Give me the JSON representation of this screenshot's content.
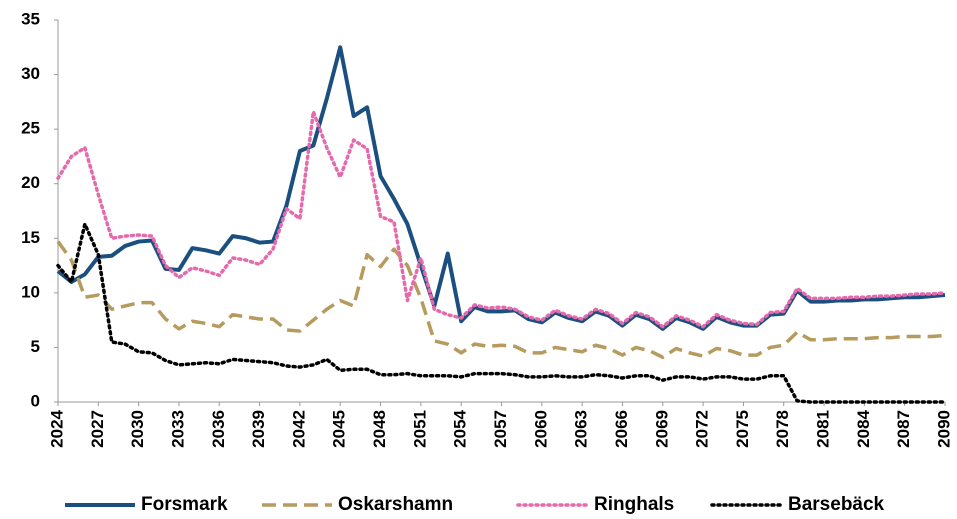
{
  "chart_data": {
    "type": "line",
    "x": [
      2024,
      2025,
      2026,
      2027,
      2028,
      2029,
      2030,
      2031,
      2032,
      2033,
      2034,
      2035,
      2036,
      2037,
      2038,
      2039,
      2040,
      2041,
      2042,
      2043,
      2044,
      2045,
      2046,
      2047,
      2048,
      2049,
      2050,
      2051,
      2052,
      2053,
      2054,
      2055,
      2056,
      2057,
      2058,
      2059,
      2060,
      2061,
      2062,
      2063,
      2064,
      2065,
      2066,
      2067,
      2068,
      2069,
      2070,
      2071,
      2072,
      2073,
      2074,
      2075,
      2076,
      2077,
      2078,
      2079,
      2080,
      2081,
      2082,
      2083,
      2084,
      2085,
      2086,
      2087,
      2088,
      2089,
      2090
    ],
    "xlim": [
      2024,
      2090
    ],
    "xticks": [
      2024,
      2027,
      2030,
      2033,
      2036,
      2039,
      2042,
      2045,
      2048,
      2051,
      2054,
      2057,
      2060,
      2063,
      2066,
      2069,
      2072,
      2075,
      2078,
      2081,
      2084,
      2087,
      2090
    ],
    "ylim": [
      0,
      35
    ],
    "yticks": [
      0,
      5,
      10,
      15,
      20,
      25,
      30,
      35
    ],
    "grid": false,
    "legend": "bottom",
    "series": [
      {
        "name": "Forsmark",
        "color": "#1b4f7f",
        "style": "solid",
        "values": [
          12,
          11,
          11.7,
          13.3,
          13.4,
          14.3,
          14.7,
          14.8,
          12.2,
          12.1,
          14.1,
          13.9,
          13.6,
          15.2,
          15.0,
          14.6,
          14.7,
          18,
          23,
          23.5,
          27.8,
          32.5,
          26.2,
          27,
          20.7,
          18.6,
          16.3,
          12.5,
          8.8,
          13.6,
          7.4,
          8.7,
          8.3,
          8.3,
          8.4,
          7.6,
          7.3,
          8.2,
          7.7,
          7.4,
          8.3,
          7.9,
          7.0,
          8.0,
          7.6,
          6.7,
          7.7,
          7.3,
          6.7,
          7.8,
          7.3,
          7.0,
          7.0,
          8.0,
          8.1,
          10.2,
          9.2,
          9.2,
          9.3,
          9.3,
          9.4,
          9.4,
          9.5,
          9.6,
          9.6,
          9.7,
          9.8
        ]
      },
      {
        "name": "Oskarshamn",
        "color": "#b69a5e",
        "style": "dashed",
        "values": [
          14.7,
          13,
          9.6,
          9.8,
          8.5,
          8.8,
          9.1,
          9.1,
          7.6,
          6.7,
          7.4,
          7.2,
          6.9,
          8.0,
          7.8,
          7.6,
          7.6,
          6.6,
          6.5,
          7.5,
          8.5,
          9.3,
          8.8,
          13.5,
          12.4,
          14,
          12.5,
          9.5,
          5.6,
          5.3,
          4.5,
          5.3,
          5.1,
          5.2,
          5.1,
          4.5,
          4.5,
          5.0,
          4.8,
          4.6,
          5.2,
          4.9,
          4.3,
          5.0,
          4.7,
          4.1,
          4.9,
          4.5,
          4.2,
          4.9,
          4.7,
          4.3,
          4.3,
          5.0,
          5.2,
          6.4,
          5.7,
          5.7,
          5.8,
          5.8,
          5.8,
          5.9,
          5.9,
          6.0,
          6.0,
          6.0,
          6.1
        ]
      },
      {
        "name": "Ringhals",
        "color": "#e46aad",
        "style": "dotted",
        "values": [
          20.5,
          22.5,
          23.3,
          19,
          15,
          15.2,
          15.3,
          15.2,
          12.5,
          11.4,
          12.3,
          12.0,
          11.6,
          13.2,
          13.0,
          12.6,
          14,
          17.7,
          16.8,
          26.6,
          23.3,
          20.6,
          24.0,
          23.2,
          17,
          16.5,
          9.3,
          13.2,
          8.5,
          8.0,
          7.7,
          8.9,
          8.6,
          8.7,
          8.5,
          7.8,
          7.5,
          8.4,
          7.9,
          7.6,
          8.5,
          8.1,
          7.2,
          8.2,
          7.8,
          6.9,
          7.9,
          7.5,
          6.9,
          8.0,
          7.5,
          7.2,
          7.1,
          8.2,
          8.3,
          10.4,
          9.5,
          9.5,
          9.5,
          9.6,
          9.6,
          9.7,
          9.7,
          9.8,
          9.9,
          9.9,
          10.0
        ]
      },
      {
        "name": "Barsebäck",
        "color": "#000000",
        "style": "dotted",
        "values": [
          12.5,
          11,
          16.3,
          13.5,
          5.5,
          5.3,
          4.6,
          4.5,
          3.8,
          3.4,
          3.5,
          3.6,
          3.5,
          3.9,
          3.8,
          3.7,
          3.6,
          3.3,
          3.2,
          3.4,
          3.9,
          2.9,
          3.0,
          3.0,
          2.5,
          2.5,
          2.6,
          2.4,
          2.4,
          2.4,
          2.3,
          2.6,
          2.6,
          2.6,
          2.5,
          2.3,
          2.3,
          2.4,
          2.3,
          2.3,
          2.5,
          2.4,
          2.2,
          2.4,
          2.4,
          2.0,
          2.3,
          2.3,
          2.1,
          2.3,
          2.3,
          2.1,
          2.1,
          2.4,
          2.4,
          0.1,
          0,
          0,
          0,
          0,
          0,
          0,
          0,
          0,
          0,
          0,
          0
        ]
      }
    ]
  }
}
